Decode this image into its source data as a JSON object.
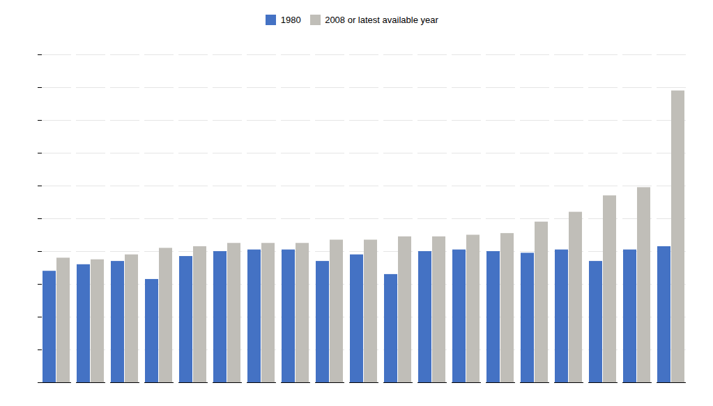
{
  "chart_data": {
    "type": "bar",
    "categories": [
      null,
      null,
      null,
      null,
      null,
      null,
      null,
      null,
      null,
      null,
      null,
      null,
      null,
      null,
      null,
      null,
      null,
      null,
      null
    ],
    "series": [
      {
        "name": "1980",
        "color": "#4472C4",
        "values": [
          6.8,
          7.2,
          7.4,
          6.3,
          7.7,
          8.0,
          8.1,
          8.1,
          7.4,
          7.8,
          6.6,
          8.0,
          8.1,
          8.0,
          7.9,
          8.1,
          7.4,
          8.1,
          8.3
        ]
      },
      {
        "name": "2008 or latest available year",
        "color": "#C0BEB8",
        "values": [
          7.6,
          7.5,
          7.8,
          8.2,
          8.3,
          8.5,
          8.5,
          8.5,
          8.7,
          8.7,
          8.9,
          8.9,
          9.0,
          9.1,
          9.8,
          10.4,
          11.4,
          11.9,
          17.8
        ]
      }
    ],
    "ylim": [
      0,
      20
    ],
    "yticks": [
      0,
      2,
      4,
      6,
      8,
      10,
      12,
      14,
      16,
      18,
      20
    ],
    "grid": true,
    "tick_labels": false,
    "legend": "top"
  }
}
